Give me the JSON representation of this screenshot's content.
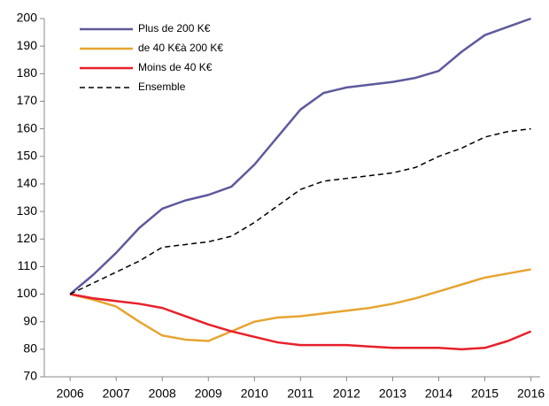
{
  "chart_data": {
    "type": "line",
    "x": [
      2006,
      2006.5,
      2007,
      2007.5,
      2008,
      2008.5,
      2009,
      2009.5,
      2010,
      2010.5,
      2011,
      2011.5,
      2012,
      2012.5,
      2013,
      2013.5,
      2014,
      2014.5,
      2015,
      2015.5,
      2016
    ],
    "series": [
      {
        "name": "Plus de 200 K€",
        "color": "#5d5a9c",
        "dash": false,
        "values": [
          100,
          107,
          115,
          124,
          131,
          134,
          136,
          139,
          147,
          157,
          167,
          173,
          175,
          176,
          177,
          178.5,
          181,
          188,
          194,
          197,
          200
        ]
      },
      {
        "name": "de 40 K€à 200 K€",
        "color": "#e6a532",
        "dash": false,
        "values": [
          100,
          98,
          95.5,
          90,
          85,
          83.5,
          83,
          86.5,
          90,
          91.5,
          92,
          93,
          94,
          95,
          96.5,
          98.5,
          101,
          103.5,
          106,
          107.5,
          109
        ]
      },
      {
        "name": "Moins de 40 K€",
        "color": "#e8202a",
        "dash": false,
        "values": [
          100,
          98.5,
          97.5,
          96.5,
          95,
          92,
          89,
          86.5,
          84.5,
          82.5,
          81.5,
          81.5,
          81.5,
          81,
          80.5,
          80.5,
          80.5,
          80,
          80.5,
          83,
          86.5
        ]
      },
      {
        "name": "Ensemble",
        "color": "#000000",
        "dash": true,
        "values": [
          100,
          104,
          108,
          112,
          117,
          118,
          119,
          121,
          126,
          132,
          138,
          141,
          142,
          143,
          144,
          146,
          150,
          153,
          157,
          159,
          160
        ]
      }
    ],
    "xlim": [
      2005.44,
      2016.2
    ],
    "xticks": [
      2006,
      2007,
      2008,
      2009,
      2010,
      2011,
      2012,
      2013,
      2014,
      2015,
      2016
    ],
    "ylim": [
      70,
      200
    ],
    "yticks": [
      70,
      80,
      90,
      100,
      110,
      120,
      130,
      140,
      150,
      160,
      170,
      180,
      190,
      200
    ],
    "legend": "upper left"
  }
}
